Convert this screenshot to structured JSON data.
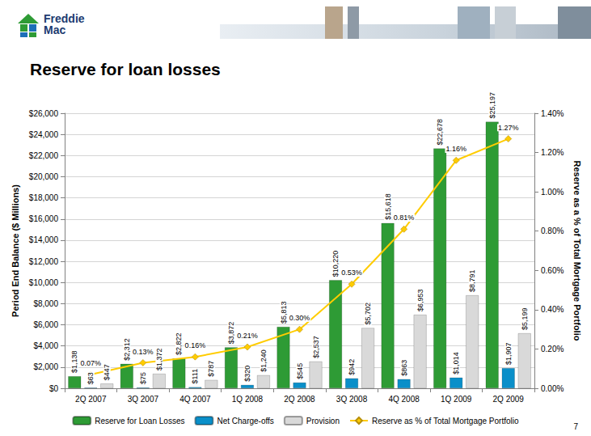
{
  "page": {
    "logo": [
      "Freddie",
      "Mac"
    ],
    "page_number": "7"
  },
  "chart_data": {
    "type": "bar",
    "title": "Reserve for loan losses",
    "categories": [
      "2Q 2007",
      "3Q 2007",
      "4Q 2007",
      "1Q 2008",
      "2Q 2008",
      "3Q 2008",
      "4Q 2008",
      "1Q 2009",
      "2Q 2009"
    ],
    "ylabel": "Period End Balance ($ Millions)",
    "y2label": "Reserve as a % of Total Mortgage Portfolio",
    "ylim": [
      0,
      26000
    ],
    "yticks": [
      {
        "value": 0,
        "label": "$0"
      },
      {
        "value": 2000,
        "label": "$2,000"
      },
      {
        "value": 4000,
        "label": "$4,000"
      },
      {
        "value": 6000,
        "label": "$6,000"
      },
      {
        "value": 8000,
        "label": "$8,000"
      },
      {
        "value": 10000,
        "label": "$10,000"
      },
      {
        "value": 12000,
        "label": "$12,000"
      },
      {
        "value": 14000,
        "label": "$14,000"
      },
      {
        "value": 16000,
        "label": "$16,000"
      },
      {
        "value": 18000,
        "label": "$18,000"
      },
      {
        "value": 20000,
        "label": "$20,000"
      },
      {
        "value": 22000,
        "label": "$22,000"
      },
      {
        "value": 24000,
        "label": "$24,000"
      },
      {
        "value": 26000,
        "label": "$26,000"
      }
    ],
    "y2lim": [
      0,
      1.4
    ],
    "y2ticks": [
      {
        "value": 0,
        "label": "0.00%"
      },
      {
        "value": 0.2,
        "label": "0.20%"
      },
      {
        "value": 0.4,
        "label": "0.40%"
      },
      {
        "value": 0.6,
        "label": "0.60%"
      },
      {
        "value": 0.8,
        "label": "0.80%"
      },
      {
        "value": 1.0,
        "label": "1.00%"
      },
      {
        "value": 1.2,
        "label": "1.20%"
      },
      {
        "value": 1.4,
        "label": "1.40%"
      }
    ],
    "series": [
      {
        "name": "Reserve for Loan Losses",
        "type": "bar",
        "color": "#2E9B35",
        "values": [
          1138,
          2312,
          2822,
          3872,
          5813,
          10220,
          15618,
          22678,
          25197
        ],
        "value_labels": [
          "$1,138",
          "$2,312",
          "$2,822",
          "$3,872",
          "$5,813",
          "$10,220",
          "$15,618",
          "$22,678",
          "$25,197"
        ]
      },
      {
        "name": "Net Charge-offs",
        "type": "bar",
        "color": "#0A8FC9",
        "values": [
          63,
          75,
          111,
          320,
          545,
          942,
          863,
          1014,
          1907
        ],
        "value_labels": [
          "$63",
          "$75",
          "$111",
          "$320",
          "$545",
          "$942",
          "$863",
          "$1,014",
          "$1,907"
        ]
      },
      {
        "name": "Provision",
        "type": "bar",
        "color": "#D9D9D9",
        "values": [
          447,
          1372,
          787,
          1240,
          2537,
          5702,
          6953,
          8791,
          5199
        ],
        "value_labels": [
          "$447",
          "$1,372",
          "$787",
          "$1,240",
          "$2,537",
          "$5,702",
          "$6,953",
          "$8,791",
          "$5,199"
        ]
      },
      {
        "name": "Reserve as % of Total Mortgage Portfolio",
        "type": "line",
        "axis": "y2",
        "color": "#FFCC00",
        "marker": "diamond",
        "values": [
          0.07,
          0.13,
          0.16,
          0.21,
          0.3,
          0.53,
          0.81,
          1.16,
          1.27
        ],
        "value_labels": [
          "0.07%",
          "0.13%",
          "0.16%",
          "0.21%",
          "0.30%",
          "0.53%",
          "0.81%",
          "1.16%",
          "1.27%"
        ]
      }
    ],
    "grid": true,
    "legend": "bottom",
    "data_labels": true
  }
}
